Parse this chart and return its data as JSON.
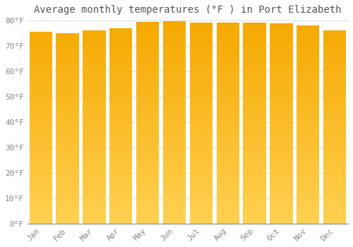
{
  "title": "Average monthly temperatures (°F ) in Port Elizabeth",
  "months": [
    "Jan",
    "Feb",
    "Mar",
    "Apr",
    "May",
    "Jun",
    "Jul",
    "Aug",
    "Sep",
    "Oct",
    "Nov",
    "Dec"
  ],
  "values": [
    75.5,
    75.0,
    76.0,
    77.0,
    79.5,
    79.8,
    79.2,
    79.2,
    79.2,
    79.0,
    78.0,
    76.0
  ],
  "ylim": [
    0,
    80
  ],
  "yticks": [
    0,
    10,
    20,
    30,
    40,
    50,
    60,
    70,
    80
  ],
  "ytick_labels": [
    "0°F",
    "10°F",
    "20°F",
    "30°F",
    "40°F",
    "50°F",
    "60°F",
    "70°F",
    "80°F"
  ],
  "bar_color_top": "#F5A800",
  "bar_color_bottom": "#FFD050",
  "background_color": "#FFFFFF",
  "grid_color": "#E0E0E0",
  "title_fontsize": 10,
  "tick_fontsize": 8,
  "bar_width": 0.85
}
